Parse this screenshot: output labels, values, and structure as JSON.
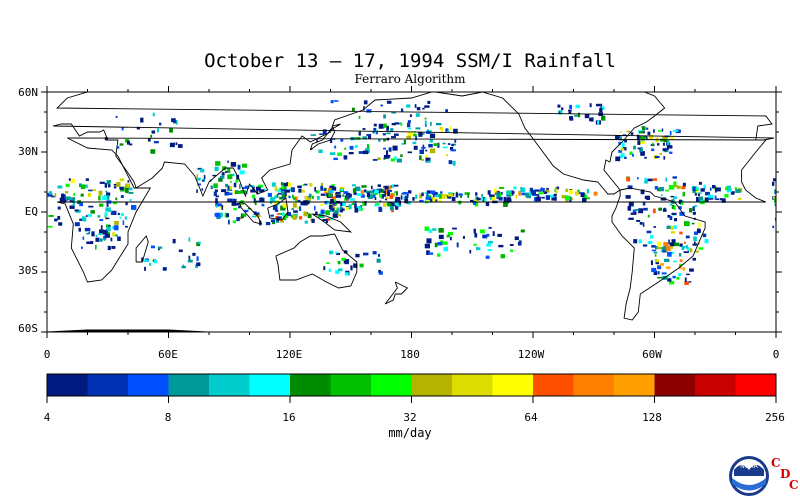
{
  "title": "October 13 – 17, 1994 SSM/I Rainfall",
  "subtitle": "Ferraro Algorithm",
  "map": {
    "lat_labels": [
      "60N",
      "30N",
      "EQ",
      "30S",
      "60S"
    ],
    "lon_labels": [
      "0",
      "60E",
      "120E",
      "180",
      "120W",
      "60W",
      "0"
    ],
    "lon_range": [
      0,
      360
    ],
    "lat_range": [
      -60,
      60
    ]
  },
  "colorbar": {
    "colors": [
      "#001a80",
      "#0033b3",
      "#0050ff",
      "#009999",
      "#00cccc",
      "#00ffff",
      "#008c00",
      "#00c000",
      "#00ff00",
      "#b3b300",
      "#dcdc00",
      "#ffff00",
      "#ff5000",
      "#ff8000",
      "#ffa000",
      "#8c0000",
      "#c80000",
      "#ff0000"
    ],
    "tick_labels": [
      "4",
      "8",
      "16",
      "32",
      "64",
      "128",
      "256"
    ],
    "units": "mm/day"
  },
  "logo": {
    "noaa_text": "NOAA",
    "cdc_letters": [
      "C",
      "D",
      "C"
    ]
  }
}
